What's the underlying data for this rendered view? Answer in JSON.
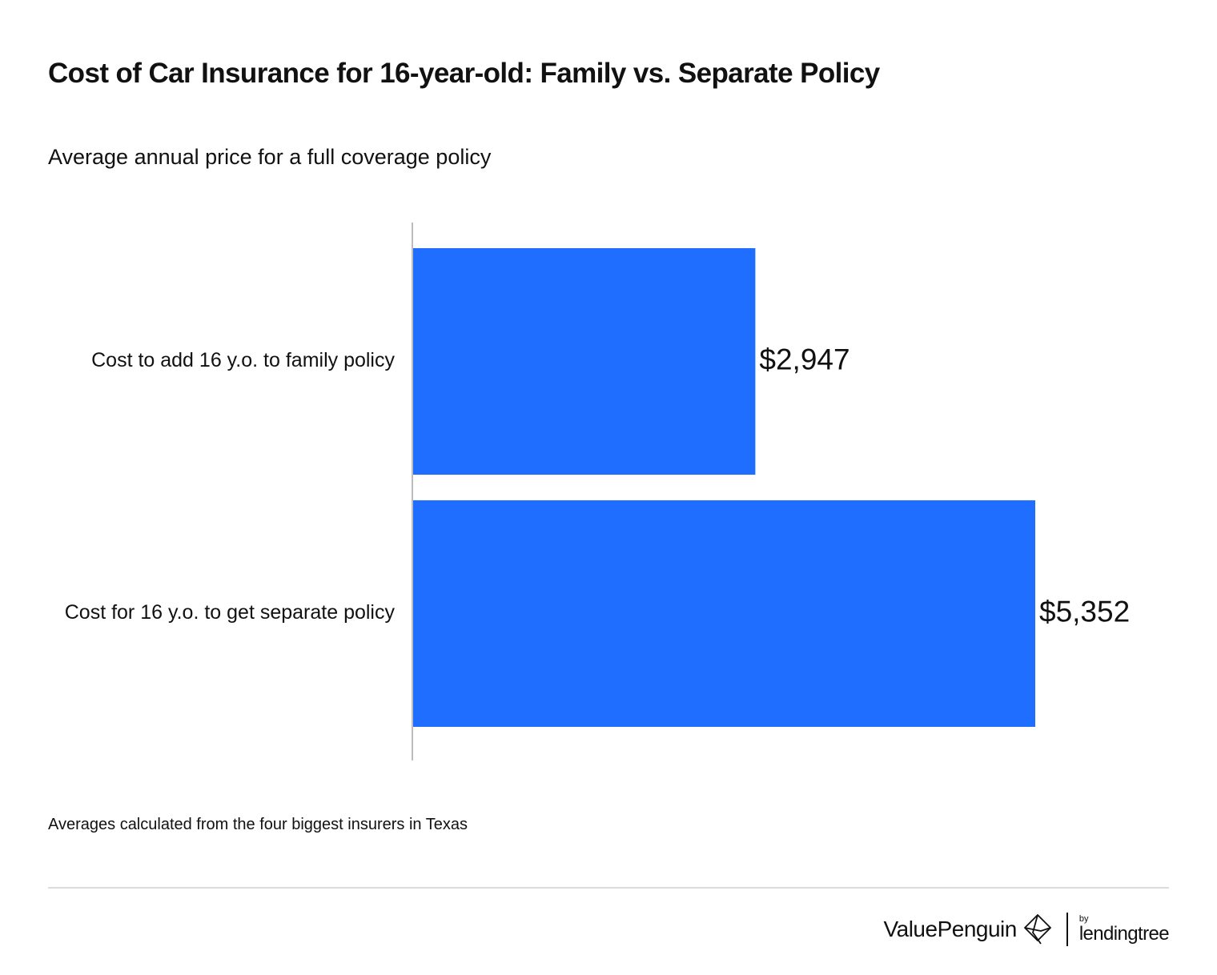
{
  "header": {
    "title": "Cost of Car Insurance for 16-year-old: Family vs. Separate Policy",
    "subtitle": "Average annual price for a full coverage policy"
  },
  "chart_data": {
    "type": "bar",
    "orientation": "horizontal",
    "title": "Cost of Car Insurance for 16-year-old: Family vs. Separate Policy",
    "subtitle": "Average annual price for a full coverage policy",
    "categories": [
      "Cost to add 16 y.o. to family policy",
      "Cost for 16 y.o. to get separate policy"
    ],
    "values": [
      2947,
      5352
    ],
    "value_labels": [
      "$2,947",
      "$5,352"
    ],
    "xlabel": "",
    "ylabel": "",
    "xlim": [
      0,
      5352
    ],
    "grid": false,
    "bar_color": "#206EFF"
  },
  "footer": {
    "note": "Averages calculated from the four biggest insurers in Texas",
    "brand_name": "ValuePenguin",
    "brand_by": "by",
    "brand_partner": "lendingtree"
  },
  "colors": {
    "bar": "#206EFF",
    "axis": "#bdbdbd",
    "rule": "#dcdcdc",
    "text": "#111111"
  }
}
